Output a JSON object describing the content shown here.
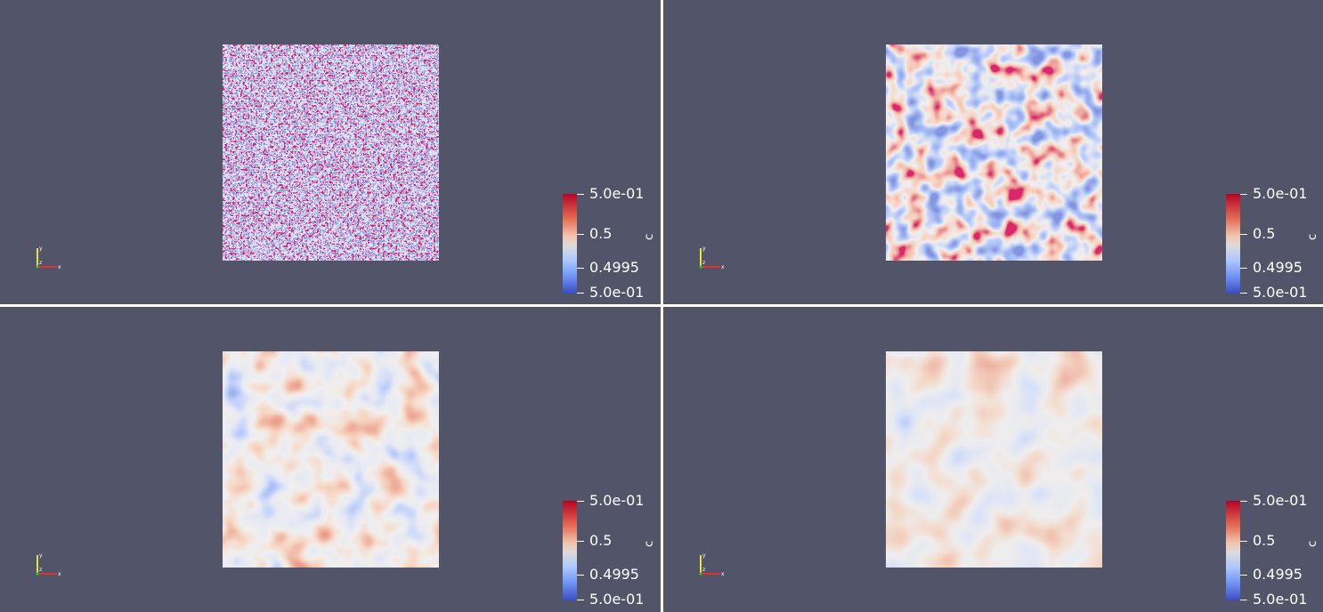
{
  "colors": {
    "background": "#525469",
    "divider": "#ffffff",
    "colormap_high": "#b40426",
    "colormap_mid": "#dddcdc",
    "colormap_low": "#3b4cc0"
  },
  "views": [
    {
      "field_pattern": "fine-noise",
      "colorbar": {
        "title": "c",
        "max": "5.0e-01",
        "mid": "0.5",
        "low": "0.4995",
        "min": "5.0e-01"
      },
      "orientation_axes": {
        "x": "x",
        "y": "y",
        "z": "z"
      }
    },
    {
      "field_pattern": "sharp-blobs",
      "colorbar": {
        "title": "c",
        "max": "5.0e-01",
        "mid": "0.5",
        "low": "0.4995",
        "min": "5.0e-01"
      },
      "orientation_axes": {
        "x": "x",
        "y": "y",
        "z": "z"
      }
    },
    {
      "field_pattern": "soft-blobs",
      "colorbar": {
        "title": "c",
        "max": "5.0e-01",
        "mid": "0.5",
        "low": "0.4995",
        "min": "5.0e-01"
      },
      "orientation_axes": {
        "x": "x",
        "y": "y",
        "z": "z"
      }
    },
    {
      "field_pattern": "diffuse-blobs",
      "colorbar": {
        "title": "c",
        "max": "5.0e-01",
        "mid": "0.5",
        "low": "0.4995",
        "min": "5.0e-01"
      },
      "orientation_axes": {
        "x": "x",
        "y": "y",
        "z": "z"
      }
    }
  ]
}
